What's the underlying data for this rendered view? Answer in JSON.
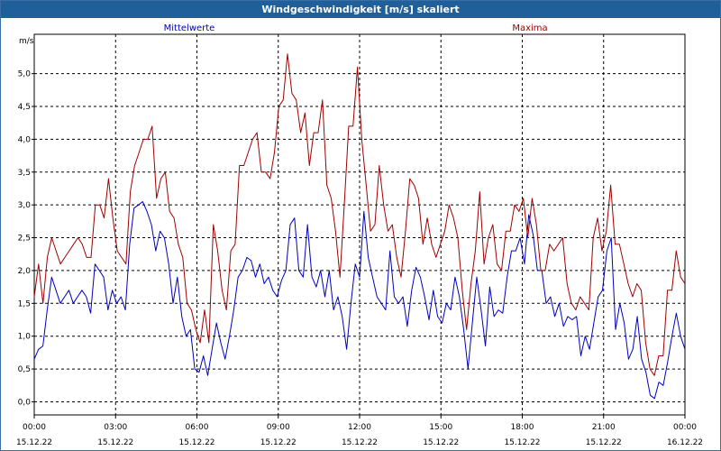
{
  "window": {
    "title": "Windgeschwindigkeit [m/s] skaliert"
  },
  "chart_data": {
    "type": "line",
    "title": "Windgeschwindigkeit [m/s] skaliert",
    "ylabel": "m/s",
    "xlabel": "",
    "ylim": [
      -0.2,
      5.6
    ],
    "yticks": [
      0.0,
      0.5,
      1.0,
      1.5,
      2.0,
      2.5,
      3.0,
      3.5,
      4.0,
      4.5,
      5.0
    ],
    "ytick_labels": [
      "0,0",
      "0,5",
      "1,0",
      "1,5",
      "2,0",
      "2,5",
      "3,0",
      "3,5",
      "4,0",
      "4,5",
      "5,0"
    ],
    "xlim": [
      0,
      24
    ],
    "xticks": [
      0,
      3,
      6,
      9,
      12,
      15,
      18,
      21,
      24
    ],
    "xtick_time_labels": [
      "00:00",
      "03:00",
      "06:00",
      "09:00",
      "12:00",
      "15:00",
      "18:00",
      "21:00",
      "00:00"
    ],
    "xtick_date_labels": [
      "15.12.22",
      "15.12.22",
      "15.12.22",
      "15.12.22",
      "15.12.22",
      "15.12.22",
      "15.12.22",
      "15.12.22",
      "16.12.22"
    ],
    "grid": true,
    "legend_position": "top",
    "x_step_hours": 0.1667,
    "series": [
      {
        "name": "Mittelwerte",
        "color": "#0000c0",
        "values": [
          0.65,
          0.8,
          0.85,
          1.4,
          1.9,
          1.7,
          1.5,
          1.6,
          1.7,
          1.5,
          1.6,
          1.7,
          1.6,
          1.35,
          2.1,
          2.0,
          1.9,
          1.4,
          1.7,
          1.5,
          1.6,
          1.4,
          2.4,
          2.95,
          3.0,
          3.05,
          2.9,
          2.7,
          2.3,
          2.6,
          2.5,
          2.1,
          1.5,
          1.9,
          1.3,
          1.0,
          1.1,
          0.5,
          0.45,
          0.7,
          0.4,
          0.8,
          1.2,
          0.9,
          0.65,
          1.0,
          1.4,
          1.9,
          2.0,
          2.2,
          2.15,
          1.9,
          2.1,
          1.8,
          1.9,
          1.7,
          1.6,
          1.85,
          2.0,
          2.7,
          2.8,
          2.0,
          1.9,
          2.7,
          1.9,
          1.75,
          2.0,
          1.6,
          2.0,
          1.4,
          1.6,
          1.3,
          0.8,
          1.5,
          2.1,
          1.9,
          2.9,
          2.2,
          1.9,
          1.6,
          1.5,
          1.4,
          2.3,
          1.6,
          1.5,
          1.6,
          1.15,
          1.7,
          2.05,
          1.9,
          1.6,
          1.25,
          1.7,
          1.3,
          1.2,
          1.5,
          1.4,
          1.9,
          1.6,
          1.1,
          0.5,
          1.2,
          1.9,
          1.4,
          0.85,
          1.75,
          1.3,
          1.4,
          1.35,
          1.9,
          2.3,
          2.3,
          2.5,
          2.1,
          2.85,
          2.55,
          2.0,
          2.0,
          1.5,
          1.6,
          1.3,
          1.5,
          1.15,
          1.3,
          1.25,
          1.3,
          0.7,
          1.0,
          0.8,
          1.2,
          1.6,
          1.7,
          2.3,
          2.5,
          1.1,
          1.5,
          1.2,
          0.65,
          0.8,
          1.3,
          0.65,
          0.45,
          0.1,
          0.05,
          0.3,
          0.25,
          0.6,
          1.0,
          1.35,
          1.0,
          0.8
        ]
      },
      {
        "name": "Maxima",
        "color": "#a00000",
        "values": [
          1.6,
          2.1,
          1.5,
          2.2,
          2.5,
          2.3,
          2.1,
          2.2,
          2.3,
          2.4,
          2.5,
          2.4,
          2.2,
          2.2,
          3.0,
          3.0,
          2.8,
          3.4,
          2.8,
          2.3,
          2.2,
          2.1,
          3.2,
          3.6,
          3.8,
          4.0,
          4.0,
          4.2,
          3.1,
          3.4,
          3.5,
          2.9,
          2.8,
          2.4,
          2.2,
          1.5,
          1.4,
          1.1,
          0.9,
          1.4,
          0.9,
          2.7,
          2.3,
          1.7,
          1.4,
          2.3,
          2.4,
          3.6,
          3.6,
          3.8,
          4.0,
          4.1,
          3.5,
          3.5,
          3.4,
          3.8,
          4.5,
          4.6,
          5.3,
          4.7,
          4.6,
          4.1,
          4.4,
          3.6,
          4.1,
          4.1,
          4.6,
          3.3,
          3.1,
          2.6,
          1.9,
          3.0,
          4.2,
          4.2,
          5.1,
          4.0,
          3.3,
          2.6,
          2.7,
          3.6,
          3.0,
          2.6,
          2.7,
          2.2,
          1.9,
          2.6,
          3.4,
          3.3,
          3.1,
          2.4,
          2.8,
          2.4,
          2.2,
          2.4,
          2.6,
          3.0,
          2.8,
          2.5,
          1.7,
          1.1,
          1.8,
          2.3,
          3.2,
          2.1,
          2.5,
          2.7,
          2.1,
          2.0,
          2.6,
          2.6,
          3.0,
          2.9,
          3.1,
          2.5,
          3.1,
          2.7,
          2.0,
          2.0,
          2.4,
          2.3,
          2.4,
          2.5,
          1.8,
          1.5,
          1.4,
          1.6,
          1.5,
          1.4,
          2.5,
          2.8,
          2.3,
          2.6,
          3.3,
          2.4,
          2.4,
          2.1,
          1.8,
          1.6,
          1.8,
          1.7,
          0.9,
          0.5,
          0.4,
          0.7,
          0.7,
          1.7,
          1.7,
          2.3,
          1.9,
          1.8
        ]
      }
    ]
  }
}
